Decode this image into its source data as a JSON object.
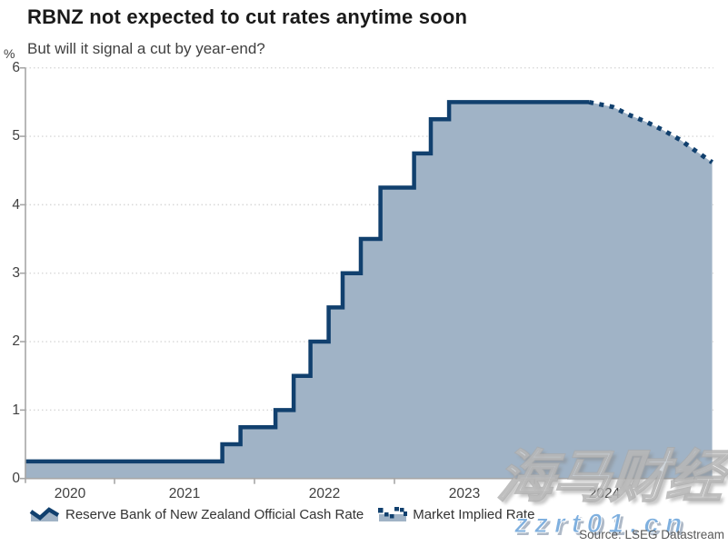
{
  "header": {
    "title": "RBNZ not expected to cut rates anytime soon",
    "subtitle": "But will it signal a cut by year-end?"
  },
  "chart_data": {
    "type": "area",
    "title": "RBNZ not expected to cut rates anytime soon",
    "subtitle": "But will it signal a cut by year-end?",
    "ylabel": "%",
    "ylim": [
      0,
      6
    ],
    "yticks": [
      6,
      5,
      4,
      3,
      2,
      1,
      0
    ],
    "ytick_labels": [
      "6",
      "5",
      "4",
      "3",
      "2",
      "1",
      "0"
    ],
    "xtick_labels": [
      "2020",
      "2021",
      "2022",
      "2023",
      "2024"
    ],
    "xtick_boundaries": [
      2021,
      2022,
      2023,
      2024,
      2025
    ],
    "x_range": [
      2020.36,
      2025.27
    ],
    "grid": "horizontal-dotted",
    "legend_position": "bottom",
    "series": [
      {
        "name": "Reserve Bank of New Zealand Official Cash Rate",
        "type": "step-area",
        "line_style": "solid",
        "points": [
          [
            2020.36,
            0.25
          ],
          [
            2021.77,
            0.5
          ],
          [
            2021.9,
            0.75
          ],
          [
            2022.15,
            1.0
          ],
          [
            2022.28,
            1.5
          ],
          [
            2022.4,
            2.0
          ],
          [
            2022.53,
            2.5
          ],
          [
            2022.63,
            3.0
          ],
          [
            2022.76,
            3.5
          ],
          [
            2022.9,
            4.25
          ],
          [
            2023.14,
            4.75
          ],
          [
            2023.26,
            5.25
          ],
          [
            2023.39,
            5.5
          ],
          [
            2024.39,
            5.5
          ]
        ]
      },
      {
        "name": "Market Implied Rate",
        "type": "line",
        "line_style": "dotted",
        "points": [
          [
            2024.39,
            5.5
          ],
          [
            2024.56,
            5.43
          ],
          [
            2024.68,
            5.31
          ],
          [
            2024.8,
            5.21
          ],
          [
            2024.92,
            5.09
          ],
          [
            2025.04,
            4.95
          ],
          [
            2025.15,
            4.79
          ],
          [
            2025.27,
            4.62
          ]
        ]
      }
    ],
    "colors": {
      "line": "#11406E",
      "area_fill": "#A0B3C6",
      "grid": "#D8D8D8",
      "axis": "#A6A6A6"
    }
  },
  "legend": {
    "items": [
      {
        "label": "Reserve Bank of New Zealand Official Cash Rate",
        "marker": "solid-wave-area-icon"
      },
      {
        "label": "Market Implied Rate",
        "marker": "dotted-wave-area-icon"
      }
    ]
  },
  "source": "Source: LSEG Datastream",
  "watermarks": {
    "brand_cn": "海马财经",
    "url": "zzrt01.cn"
  }
}
